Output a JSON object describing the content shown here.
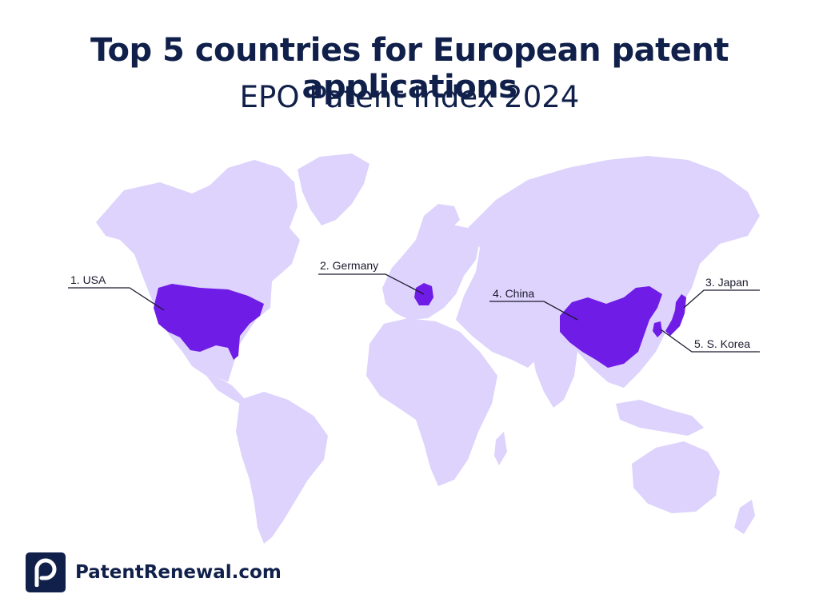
{
  "header": {
    "title": "Top 5 countries for European patent applications",
    "subtitle": "EPO Patent Index 2024"
  },
  "colors": {
    "land": "#ddd3fd",
    "highlight": "#6f1ce6",
    "text": "#10204a"
  },
  "map": {
    "labels": [
      {
        "rank": 1,
        "text": "1. USA"
      },
      {
        "rank": 2,
        "text": "2. Germany"
      },
      {
        "rank": 3,
        "text": "3. Japan"
      },
      {
        "rank": 4,
        "text": "4. China"
      },
      {
        "rank": 5,
        "text": "5. S. Korea"
      }
    ]
  },
  "brand": {
    "name": "PatentRenewal.com",
    "logo_icon": "p-logo-icon"
  }
}
